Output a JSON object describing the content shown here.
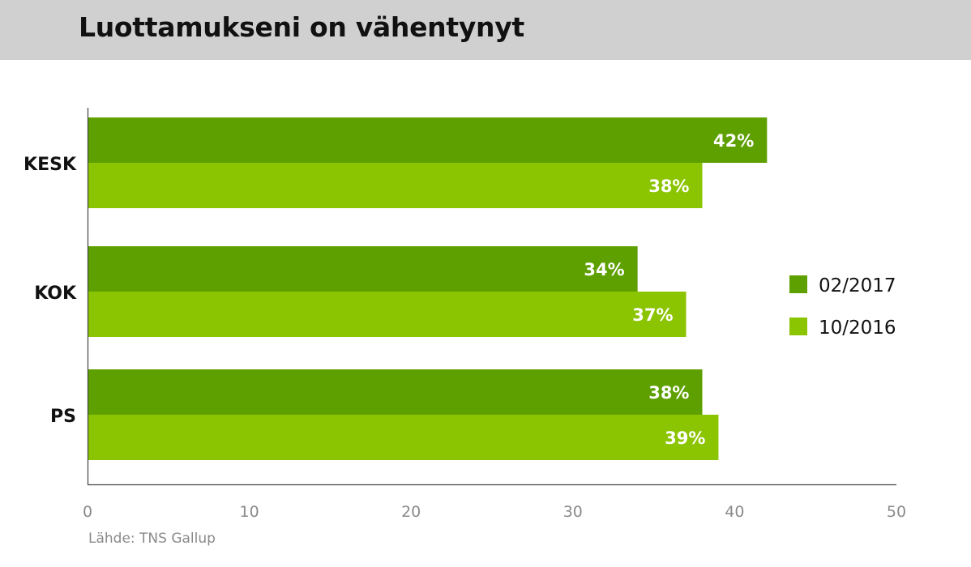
{
  "title": "Luottamukseni on vähentynyt",
  "source": "Lähde: TNS Gallup",
  "colors": {
    "series_dark": "#5ea000",
    "series_light": "#8bc400",
    "header_bg": "#d0d0d0"
  },
  "chart_data": {
    "type": "bar",
    "orientation": "horizontal",
    "categories": [
      "KESK",
      "KOK",
      "PS"
    ],
    "series": [
      {
        "name": "02/2017",
        "values": [
          42,
          34,
          38
        ],
        "labels": [
          "42%",
          "34%",
          "38%"
        ],
        "color": "#5ea000"
      },
      {
        "name": "10/2016",
        "values": [
          38,
          37,
          39
        ],
        "labels": [
          "38%",
          "37%",
          "39%"
        ],
        "color": "#8bc400"
      }
    ],
    "xlim": [
      0,
      50
    ],
    "xticks": [
      0,
      10,
      20,
      30,
      40,
      50
    ],
    "tick_labels": [
      "0",
      "10",
      "20",
      "30",
      "40",
      "50"
    ],
    "grid": false,
    "legend_position": "right"
  }
}
